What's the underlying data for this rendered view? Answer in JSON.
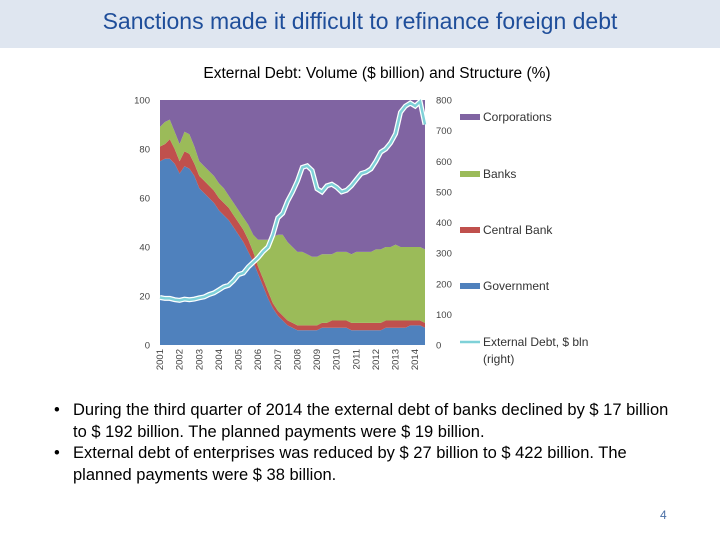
{
  "slide": {
    "title": "Sanctions made it difficult to refinance foreign debt",
    "page_number": "4",
    "bullet_symbol": "•",
    "bullets": [
      "During the third quarter of 2014 the external debt of banks declined by $ 17 billion to $ 192 billion. The planned payments were $ 19 billion.",
      "External debt of enterprises was reduced by $ 27 billion to $ 422 billion. The planned payments were $ 38 billion."
    ]
  },
  "chart_data": {
    "type": "area",
    "title": "External Debt:  Volume ($ billion) and Structure (%)",
    "stacked_percent": true,
    "x": [
      2001,
      2001.25,
      2001.5,
      2001.75,
      2002,
      2002.25,
      2002.5,
      2002.75,
      2003,
      2003.25,
      2003.5,
      2003.75,
      2004,
      2004.25,
      2004.5,
      2004.75,
      2005,
      2005.25,
      2005.5,
      2005.75,
      2006,
      2006.25,
      2006.5,
      2006.75,
      2007,
      2007.25,
      2007.5,
      2007.75,
      2008,
      2008.25,
      2008.5,
      2008.75,
      2009,
      2009.25,
      2009.5,
      2009.75,
      2010,
      2010.25,
      2010.5,
      2010.75,
      2011,
      2011.25,
      2011.5,
      2011.75,
      2012,
      2012.25,
      2012.5,
      2012.75,
      2013,
      2013.25,
      2013.5,
      2013.75,
      2014,
      2014.25,
      2014.5
    ],
    "x_tick_labels": [
      "2001",
      "2002",
      "2003",
      "2004",
      "2005",
      "2006",
      "2007",
      "2008",
      "2009",
      "2010",
      "2011",
      "2012",
      "2013",
      "2014"
    ],
    "y_left": {
      "range": [
        0,
        100
      ],
      "ticks": [
        "100",
        "80",
        "60",
        "40",
        "20",
        "0"
      ]
    },
    "y_right": {
      "range": [
        0,
        800
      ],
      "ticks": [
        "800",
        "700",
        "600",
        "500",
        "400",
        "300",
        "200",
        "100",
        "0"
      ]
    },
    "series": [
      {
        "name": "Government",
        "color": "#4f81bd",
        "values": [
          75,
          76,
          76,
          74,
          70,
          73,
          72,
          69,
          64,
          62,
          60,
          58,
          55,
          53,
          51,
          48,
          45,
          42,
          38,
          34,
          29,
          24,
          19,
          15,
          12,
          10,
          8,
          7,
          6,
          6,
          6,
          6,
          6,
          7,
          7,
          7,
          7,
          7,
          7,
          6,
          6,
          6,
          6,
          6,
          6,
          6,
          7,
          7,
          7,
          7,
          7,
          8,
          8,
          8,
          7
        ]
      },
      {
        "name": "Central Bank",
        "color": "#c0504d",
        "values": [
          6,
          6,
          8,
          6,
          5,
          6,
          6,
          5,
          5,
          5,
          5,
          5,
          5,
          5,
          5,
          5,
          5,
          5,
          5,
          4,
          3,
          3,
          3,
          2,
          2,
          2,
          2,
          2,
          2,
          2,
          2,
          2,
          2,
          2,
          2,
          3,
          3,
          3,
          3,
          3,
          3,
          3,
          3,
          3,
          3,
          3,
          3,
          3,
          3,
          3,
          3,
          2,
          2,
          2,
          2
        ]
      },
      {
        "name": "Banks",
        "color": "#9bbb59",
        "values": [
          8,
          9,
          8,
          7,
          7,
          8,
          8,
          7,
          6,
          6,
          6,
          6,
          6,
          6,
          5,
          5,
          5,
          5,
          6,
          7,
          11,
          16,
          21,
          27,
          31,
          33,
          32,
          31,
          30,
          30,
          29,
          28,
          28,
          28,
          28,
          27,
          28,
          28,
          28,
          28,
          29,
          29,
          29,
          29,
          30,
          30,
          30,
          30,
          31,
          30,
          30,
          30,
          30,
          30,
          30
        ]
      },
      {
        "name": "Corporations",
        "color": "#8064a2",
        "values": [
          11,
          9,
          8,
          13,
          18,
          13,
          14,
          19,
          25,
          27,
          29,
          31,
          34,
          36,
          39,
          42,
          45,
          48,
          51,
          55,
          57,
          57,
          57,
          56,
          55,
          55,
          58,
          60,
          62,
          62,
          63,
          64,
          64,
          63,
          63,
          63,
          62,
          62,
          62,
          63,
          62,
          62,
          62,
          62,
          61,
          61,
          60,
          60,
          59,
          60,
          60,
          60,
          60,
          60,
          61
        ]
      }
    ],
    "line_series": {
      "name": "External Debt, $ bln (right)",
      "axis": "right",
      "color": "#7fd1d8",
      "values": [
        155,
        152,
        152,
        148,
        146,
        150,
        148,
        150,
        154,
        157,
        165,
        170,
        180,
        190,
        195,
        210,
        230,
        235,
        255,
        270,
        285,
        305,
        320,
        360,
        415,
        430,
        470,
        500,
        535,
        580,
        585,
        570,
        510,
        500,
        520,
        525,
        515,
        500,
        505,
        520,
        540,
        560,
        565,
        575,
        600,
        630,
        640,
        660,
        690,
        760,
        780,
        790,
        780,
        795,
        720
      ]
    },
    "legend": [
      "Corporations",
      "Banks",
      "Central Bank",
      "Government",
      "External Debt, $ bln (right)"
    ],
    "legend_placement": "right"
  }
}
